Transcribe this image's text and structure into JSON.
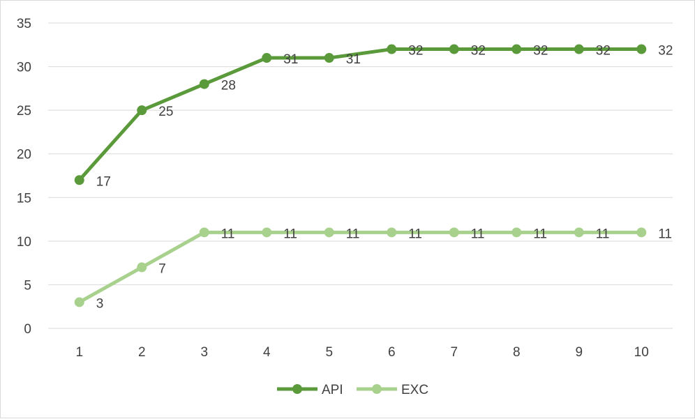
{
  "chart_data": {
    "type": "line",
    "title": "",
    "xlabel": "",
    "ylabel": "",
    "x": [
      1,
      2,
      3,
      4,
      5,
      6,
      7,
      8,
      9,
      10
    ],
    "ylim": [
      0,
      35
    ],
    "yticks": [
      0,
      5,
      10,
      15,
      20,
      25,
      30,
      35
    ],
    "grid": true,
    "legend_position": "bottom",
    "data_labels": true,
    "series": [
      {
        "name": "API",
        "color": "#5b9a3a",
        "values": [
          17,
          25,
          28,
          31,
          31,
          32,
          32,
          32,
          32,
          32
        ]
      },
      {
        "name": "EXC",
        "color": "#a9d18e",
        "values": [
          3,
          7,
          11,
          11,
          11,
          11,
          11,
          11,
          11,
          11
        ]
      }
    ]
  }
}
